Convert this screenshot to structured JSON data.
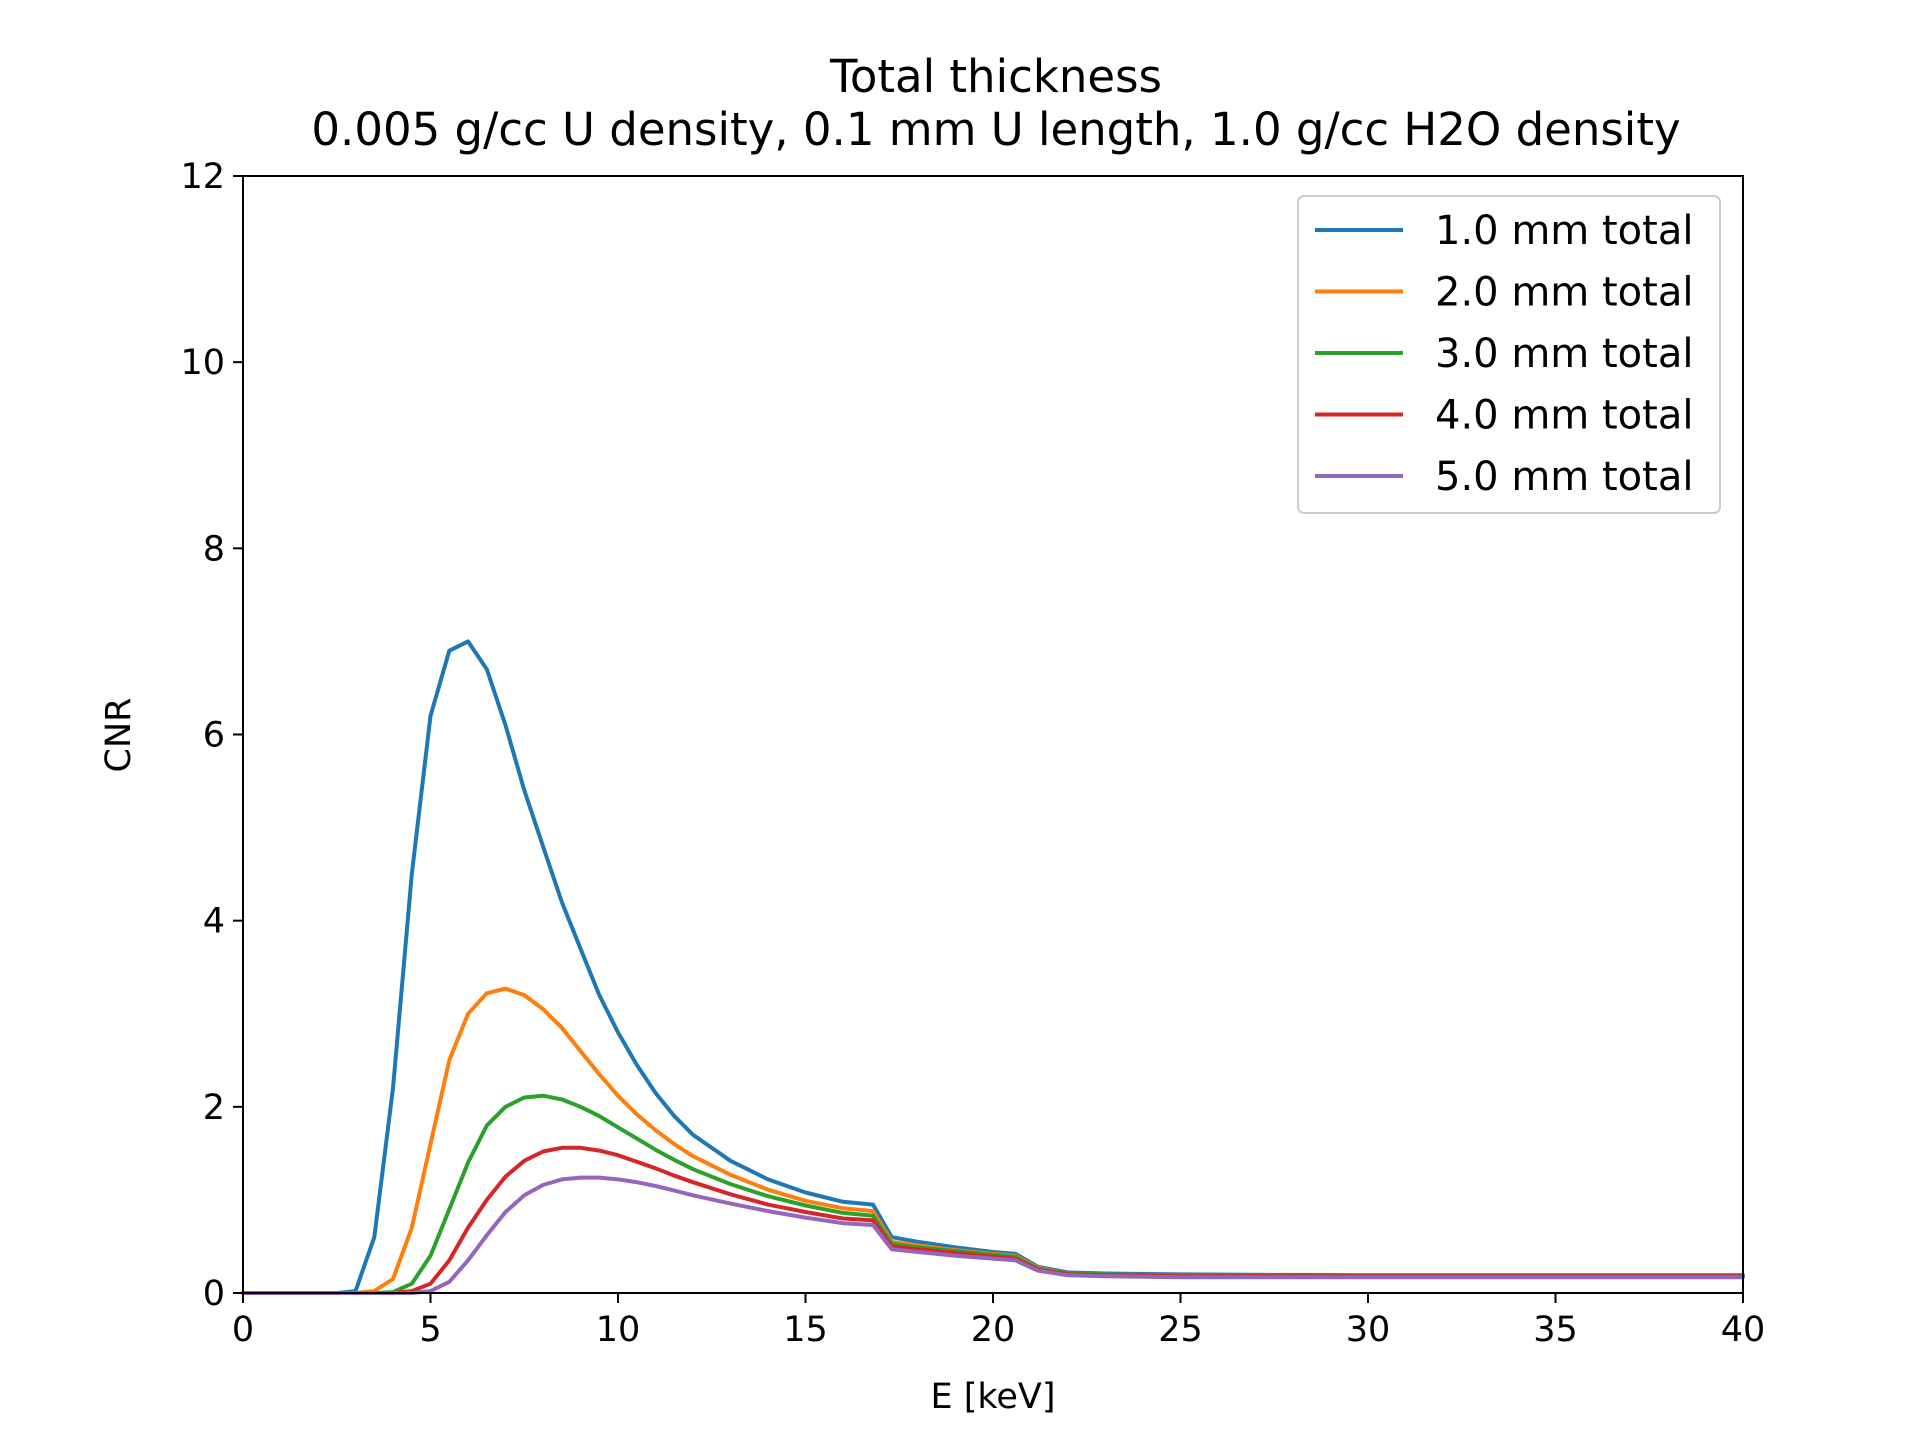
{
  "chart_data": {
    "type": "line",
    "title": "Total thickness",
    "subtitle": "0.005 g/cc U density, 0.1 mm U length, 1.0 g/cc H2O density",
    "xlabel": "E [keV]",
    "ylabel": "CNR",
    "xlim": [
      0,
      40
    ],
    "ylim": [
      0,
      12
    ],
    "xticks": [
      0,
      5,
      10,
      15,
      20,
      25,
      30,
      35,
      40
    ],
    "yticks": [
      0,
      2,
      4,
      6,
      8,
      10,
      12
    ],
    "grid": false,
    "legend_position": "top-right",
    "x": [
      0,
      1,
      2,
      2.5,
      3,
      3.5,
      4,
      4.5,
      5,
      5.5,
      6,
      6.5,
      7,
      7.5,
      8,
      8.5,
      9,
      9.5,
      10,
      10.5,
      11,
      11.5,
      12,
      13,
      14,
      15,
      16,
      16.8,
      17.3,
      18,
      19,
      20,
      20.6,
      21.2,
      22,
      23,
      25,
      30,
      35,
      40
    ],
    "series": [
      {
        "name": "1.0 mm total",
        "color": "#1f77b4",
        "values": [
          0.0,
          0.0,
          0.0,
          0.0,
          0.02,
          0.6,
          2.2,
          4.5,
          6.2,
          6.9,
          7.0,
          6.7,
          6.1,
          5.4,
          4.8,
          4.2,
          3.7,
          3.2,
          2.8,
          2.45,
          2.15,
          1.9,
          1.7,
          1.42,
          1.22,
          1.08,
          0.98,
          0.95,
          0.6,
          0.55,
          0.49,
          0.44,
          0.42,
          0.28,
          0.22,
          0.21,
          0.2,
          0.19,
          0.19,
          0.19
        ]
      },
      {
        "name": "2.0 mm total",
        "color": "#ff7f0e",
        "values": [
          0.0,
          0.0,
          0.0,
          0.0,
          0.0,
          0.02,
          0.15,
          0.7,
          1.6,
          2.5,
          3.0,
          3.22,
          3.27,
          3.2,
          3.05,
          2.85,
          2.6,
          2.35,
          2.12,
          1.92,
          1.75,
          1.6,
          1.47,
          1.27,
          1.11,
          0.99,
          0.91,
          0.88,
          0.55,
          0.51,
          0.46,
          0.42,
          0.4,
          0.27,
          0.21,
          0.2,
          0.19,
          0.18,
          0.18,
          0.18
        ]
      },
      {
        "name": "3.0 mm total",
        "color": "#2ca02c",
        "values": [
          0.0,
          0.0,
          0.0,
          0.0,
          0.0,
          0.0,
          0.01,
          0.1,
          0.4,
          0.9,
          1.4,
          1.8,
          2.0,
          2.1,
          2.12,
          2.08,
          2.0,
          1.9,
          1.78,
          1.66,
          1.54,
          1.43,
          1.33,
          1.17,
          1.04,
          0.94,
          0.86,
          0.83,
          0.53,
          0.49,
          0.45,
          0.41,
          0.39,
          0.26,
          0.21,
          0.2,
          0.19,
          0.18,
          0.18,
          0.18
        ]
      },
      {
        "name": "4.0 mm total",
        "color": "#d62728",
        "values": [
          0.0,
          0.0,
          0.0,
          0.0,
          0.0,
          0.0,
          0.0,
          0.02,
          0.1,
          0.35,
          0.7,
          1.0,
          1.25,
          1.42,
          1.52,
          1.56,
          1.56,
          1.53,
          1.48,
          1.41,
          1.34,
          1.26,
          1.19,
          1.06,
          0.95,
          0.87,
          0.8,
          0.78,
          0.5,
          0.47,
          0.43,
          0.39,
          0.37,
          0.25,
          0.2,
          0.19,
          0.18,
          0.18,
          0.18,
          0.18
        ]
      },
      {
        "name": "5.0 mm total",
        "color": "#9467bd",
        "values": [
          0.0,
          0.0,
          0.0,
          0.0,
          0.0,
          0.0,
          0.0,
          0.0,
          0.02,
          0.12,
          0.35,
          0.62,
          0.87,
          1.05,
          1.16,
          1.22,
          1.24,
          1.24,
          1.22,
          1.19,
          1.15,
          1.1,
          1.05,
          0.96,
          0.88,
          0.81,
          0.75,
          0.73,
          0.47,
          0.44,
          0.4,
          0.37,
          0.35,
          0.24,
          0.19,
          0.18,
          0.17,
          0.17,
          0.17,
          0.17
        ]
      }
    ]
  }
}
